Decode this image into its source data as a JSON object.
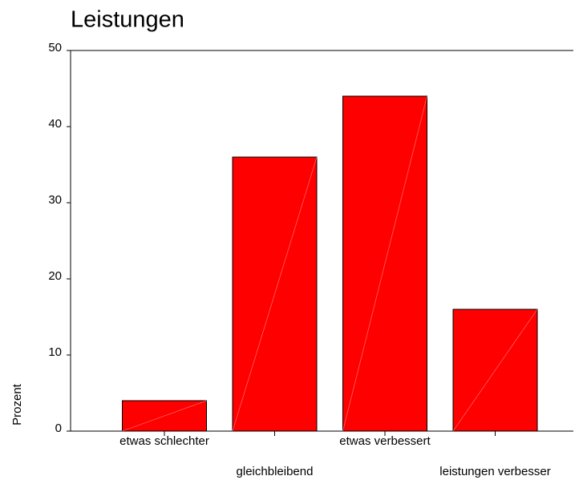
{
  "chart_data": {
    "type": "bar",
    "title": "Leistungen",
    "y_label": "Prozent",
    "categories": [
      "etwas schlechter",
      "gleichbleibend",
      "etwas verbessert",
      "leistungen verbesser"
    ],
    "values": [
      4,
      36,
      44,
      16
    ],
    "color": "#ff0000",
    "ylim": [
      0,
      50
    ],
    "yticks": [
      0,
      10,
      20,
      30,
      40,
      50
    ]
  }
}
